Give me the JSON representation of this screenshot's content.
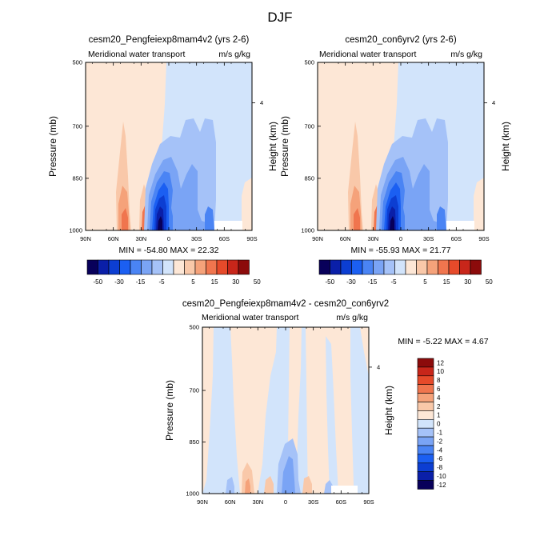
{
  "page": {
    "title": "DJF"
  },
  "palette": {
    "main": [
      "#08005a",
      "#0a1fa8",
      "#0c3ed2",
      "#1b5ff2",
      "#4a84f4",
      "#7aa4f5",
      "#a5c2f8",
      "#d2e4fb",
      "#fde7d6",
      "#f9c8a9",
      "#f5a27a",
      "#f0754e",
      "#e64a2a",
      "#c8261a",
      "#8c0b0b"
    ],
    "diff": [
      "#08005a",
      "#0a1fa8",
      "#0c3ed2",
      "#1b5ff2",
      "#4a84f4",
      "#7aa4f5",
      "#a5c2f8",
      "#d2e4fb",
      "#fde7d6",
      "#f9c8a9",
      "#f5a27a",
      "#f0754e",
      "#e64a2a",
      "#c8261a",
      "#8c0b0b"
    ]
  },
  "chart_data": [
    {
      "type": "heatmap",
      "title": "cesm20_Pengfeiexp8mam4v2 (yrs 2-6)",
      "left_label": "Meridional water transport",
      "right_label": "m/s g/kg",
      "ylabel": "Pressure (mb)",
      "y2label": "Height (km)",
      "y2ticks": [
        {
          "value": 4,
          "label": "4"
        }
      ],
      "xticks": [
        "90N",
        "60N",
        "30N",
        "0",
        "30S",
        "60S",
        "90S"
      ],
      "yticks": [
        "500",
        "700",
        "850",
        "1000"
      ],
      "min_max": "MIN = -54.80  MAX =  22.32",
      "colorbar_labels": [
        "-50",
        "-30",
        "-15",
        "-5",
        "5",
        "15",
        "30",
        "50"
      ]
    },
    {
      "type": "heatmap",
      "title": "cesm20_con6yrv2 (yrs 2-6)",
      "left_label": "Meridional water transport",
      "right_label": "m/s g/kg",
      "ylabel": "Pressure (mb)",
      "y2label": "Height (km)",
      "y2ticks": [
        {
          "value": 4,
          "label": "4"
        }
      ],
      "xticks": [
        "90N",
        "60N",
        "30N",
        "0",
        "30S",
        "60S",
        "90S"
      ],
      "yticks": [
        "500",
        "700",
        "850",
        "1000"
      ],
      "min_max": "MIN = -55.93  MAX =  21.77",
      "colorbar_labels": [
        "-50",
        "-30",
        "-15",
        "-5",
        "5",
        "15",
        "30",
        "50"
      ]
    },
    {
      "type": "heatmap",
      "title": "cesm20_Pengfeiexp8mam4v2 - cesm20_con6yrv2",
      "left_label": "Meridional water transport",
      "right_label": "m/s g/kg",
      "ylabel": "Pressure (mb)",
      "y2label": "Height (km)",
      "y2ticks": [
        {
          "value": 4,
          "label": "4"
        }
      ],
      "xticks": [
        "90N",
        "60N",
        "30N",
        "0",
        "30S",
        "60S",
        "90S"
      ],
      "yticks": [
        "500",
        "700",
        "850",
        "1000"
      ],
      "min_max": "MIN = -5.22  MAX =   4.67",
      "colorbar_labels": [
        "12",
        "10",
        "8",
        "6",
        "4",
        "2",
        "1",
        "0",
        "-1",
        "-2",
        "-4",
        "-6",
        "-8",
        "-10",
        "-12"
      ]
    }
  ]
}
